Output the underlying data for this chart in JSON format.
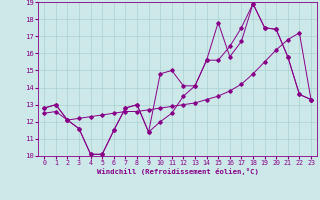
{
  "xlabel": "Windchill (Refroidissement éolien,°C)",
  "xlim": [
    -0.5,
    23.5
  ],
  "ylim": [
    10,
    19
  ],
  "xticks": [
    0,
    1,
    2,
    3,
    4,
    5,
    6,
    7,
    8,
    9,
    10,
    11,
    12,
    13,
    14,
    15,
    16,
    17,
    18,
    19,
    20,
    21,
    22,
    23
  ],
  "yticks": [
    10,
    11,
    12,
    13,
    14,
    15,
    16,
    17,
    18,
    19
  ],
  "bg_color": "#cce8e8",
  "grid_color": "#aad0d0",
  "line_color": "#880088",
  "line1_x": [
    0,
    1,
    2,
    3,
    4,
    5,
    6,
    7,
    8,
    9,
    10,
    11,
    12,
    13,
    14,
    15,
    16,
    17,
    18,
    19,
    20,
    21,
    22,
    23
  ],
  "line1_y": [
    12.8,
    13.0,
    12.1,
    11.6,
    10.1,
    10.1,
    11.5,
    12.8,
    13.0,
    11.4,
    14.8,
    15.0,
    14.1,
    14.1,
    15.6,
    17.8,
    15.8,
    16.7,
    18.9,
    17.5,
    17.4,
    15.8,
    13.6,
    13.3
  ],
  "line2_x": [
    0,
    1,
    2,
    3,
    4,
    5,
    6,
    7,
    8,
    9,
    10,
    11,
    12,
    13,
    14,
    15,
    16,
    17,
    18,
    19,
    20,
    21,
    22,
    23
  ],
  "line2_y": [
    12.8,
    13.0,
    12.1,
    11.6,
    10.1,
    10.1,
    11.5,
    12.8,
    13.0,
    11.4,
    12.0,
    12.5,
    13.5,
    14.1,
    15.6,
    15.6,
    16.4,
    17.5,
    18.9,
    17.5,
    17.4,
    15.8,
    13.6,
    13.3
  ],
  "line3_x": [
    0,
    1,
    2,
    3,
    4,
    5,
    6,
    7,
    8,
    9,
    10,
    11,
    12,
    13,
    14,
    15,
    16,
    17,
    18,
    19,
    20,
    21,
    22,
    23
  ],
  "line3_y": [
    12.5,
    12.6,
    12.1,
    12.2,
    12.3,
    12.4,
    12.5,
    12.6,
    12.6,
    12.7,
    12.8,
    12.9,
    13.0,
    13.1,
    13.3,
    13.5,
    13.8,
    14.2,
    14.8,
    15.5,
    16.2,
    16.8,
    17.2,
    13.3
  ]
}
